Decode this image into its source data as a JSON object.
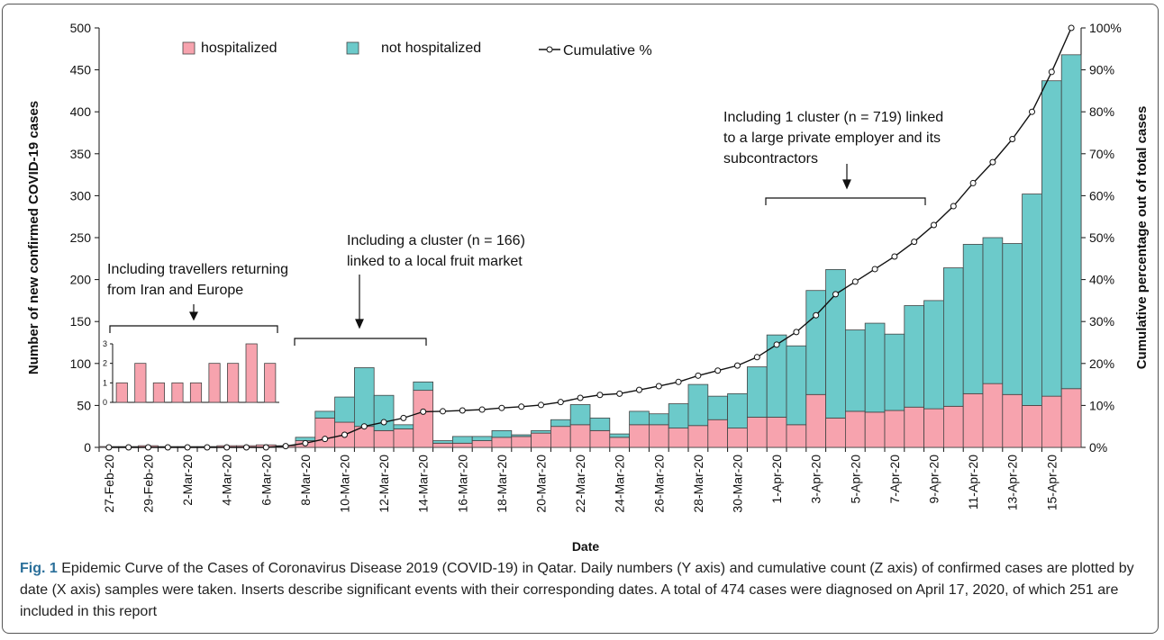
{
  "chart_data": [
    {
      "type": "bar",
      "stacked": true,
      "xlabel": "Date",
      "ylabel": "Number of new confirmed COVID-19 cases",
      "y2label": "Cumulative percentage out of total cases",
      "categories": [
        "27-Feb-20",
        null,
        "29-Feb-20",
        null,
        "2-Mar-20",
        null,
        "4-Mar-20",
        null,
        "6-Mar-20",
        null,
        "8-Mar-20",
        null,
        "10-Mar-20",
        null,
        "12-Mar-20",
        null,
        "14-Mar-20",
        null,
        "16-Mar-20",
        null,
        "18-Mar-20",
        null,
        "20-Mar-20",
        null,
        "22-Mar-20",
        null,
        "24-Mar-20",
        null,
        "26-Mar-20",
        null,
        "28-Mar-20",
        null,
        "30-Mar-20",
        null,
        "1-Apr-20",
        null,
        "3-Apr-20",
        null,
        "5-Apr-20",
        null,
        "7-Apr-20",
        null,
        "9-Apr-20",
        null,
        "11-Apr-20",
        null,
        "13-Apr-20",
        null,
        "15-Apr-20",
        null
      ],
      "series": [
        {
          "name": "hospitalized",
          "color": "#f7a3ae",
          "values": [
            1,
            1,
            2,
            1,
            1,
            1,
            2,
            2,
            3,
            2,
            8,
            35,
            30,
            25,
            20,
            22,
            68,
            5,
            5,
            8,
            12,
            13,
            17,
            25,
            27,
            20,
            12,
            27,
            27,
            23,
            26,
            33,
            23,
            36,
            36,
            27,
            63,
            35,
            43,
            42,
            44,
            48,
            46,
            49,
            64,
            76,
            63,
            50,
            61,
            70
          ]
        },
        {
          "name": "not hospitalized",
          "color": "#6ccaca",
          "values": [
            0,
            0,
            0,
            0,
            0,
            0,
            0,
            0,
            0,
            0,
            4,
            8,
            30,
            70,
            42,
            5,
            10,
            3,
            8,
            5,
            8,
            2,
            3,
            8,
            24,
            15,
            4,
            16,
            13,
            29,
            49,
            28,
            41,
            60,
            98,
            94,
            124,
            177,
            97,
            106,
            91,
            121,
            129,
            165,
            178,
            174,
            180,
            252,
            376,
            398
          ]
        },
        {
          "name": "Cumulative %",
          "color": "#111111",
          "axis": "y2",
          "values": [
            0,
            0,
            0,
            0,
            0,
            0,
            0,
            0,
            0,
            0.3,
            1,
            2,
            3,
            5,
            6,
            7,
            8.5,
            8.6,
            8.8,
            9,
            9.4,
            9.7,
            10.1,
            10.8,
            11.8,
            12.5,
            12.8,
            13.7,
            14.6,
            15.6,
            17.1,
            18.3,
            19.5,
            21.5,
            24.5,
            27.5,
            31.5,
            36.5,
            39.5,
            42.5,
            45.5,
            49,
            53,
            57.5,
            63,
            68,
            73.5,
            80,
            89.5,
            100
          ]
        }
      ],
      "ylim": [
        0,
        500
      ],
      "yticks": [
        0,
        50,
        100,
        150,
        200,
        250,
        300,
        350,
        400,
        450,
        500
      ],
      "y2lim": [
        0,
        100
      ],
      "y2ticks": [
        {
          "value": 0,
          "label": "0%"
        },
        {
          "value": 10,
          "label": "10%"
        },
        {
          "value": 20,
          "label": "20%"
        },
        {
          "value": 30,
          "label": "30%"
        },
        {
          "value": 40,
          "label": "40%"
        },
        {
          "value": 50,
          "label": "50%"
        },
        {
          "value": 60,
          "label": "60%"
        },
        {
          "value": 70,
          "label": "70%"
        },
        {
          "value": 80,
          "label": "80%"
        },
        {
          "value": 90,
          "label": "90%"
        },
        {
          "value": 100,
          "label": "100%"
        }
      ],
      "annotations": [
        [
          "Including travellers returning",
          "from Iran and Europe"
        ],
        [
          "Including a cluster (n = 166)",
          "linked to a local fruit market"
        ],
        [
          "Including 1 cluster (n = 719) linked",
          "to a large private employer and its",
          "subcontractors"
        ]
      ]
    },
    {
      "type": "bar",
      "color": "#f7a3ae",
      "values": [
        1,
        2,
        1,
        1,
        1,
        2,
        2,
        3,
        2
      ],
      "ylim": [
        0,
        3
      ],
      "yticks": [
        0,
        1,
        2,
        3
      ]
    }
  ],
  "caption": {
    "label": "Fig. 1",
    "text": "Epidemic Curve of the Cases of Coronavirus Disease 2019 (COVID-19) in Qatar. Daily numbers (Y axis) and cumulative count (Z axis) of confirmed cases are plotted by date (X axis) samples were taken. Inserts describe significant events with their corresponding dates. A total of 474 cases were diagnosed on April 17, 2020, of which 251 are included in this report"
  }
}
